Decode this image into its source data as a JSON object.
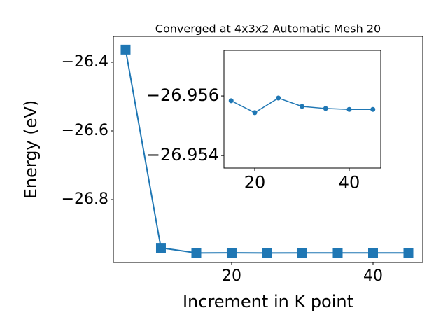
{
  "chart_data": [
    {
      "type": "line",
      "title": "Converged at 4x3x2 Automatic Mesh 20",
      "x_label": "Increment in K point",
      "y_label": "Energy (eV)",
      "x": [
        5,
        10,
        15,
        20,
        25,
        30,
        35,
        40,
        45
      ],
      "series": [
        {
          "color": "#1f77b4",
          "marker": "square",
          "values": [
            -26.363,
            -26.941,
            -26.9558,
            -26.9554,
            -26.9559,
            -26.9557,
            -26.9556,
            -26.9556,
            -26.9556
          ]
        }
      ],
      "xlim": [
        3.27,
        47.03
      ],
      "ylim": [
        -26.9837,
        -26.3245
      ],
      "xticks": [
        20,
        40
      ],
      "yticks": [
        {
          "value": -26.4,
          "label": "−26.4"
        },
        {
          "value": -26.6,
          "label": "−26.6"
        },
        {
          "value": -26.8,
          "label": "−26.8"
        }
      ]
    },
    {
      "type": "line",
      "x": [
        15,
        20,
        25,
        30,
        35,
        40,
        45
      ],
      "series": [
        {
          "color": "#1f77b4",
          "marker": "circle",
          "values": [
            -26.95584,
            -26.95544,
            -26.95593,
            -26.95565,
            -26.95558,
            -26.95555,
            -26.95555
          ]
        }
      ],
      "xlim": [
        13.48,
        46.67
      ],
      "ylim": [
        -26.95358,
        -26.95753
      ],
      "xticks": [
        20,
        40
      ],
      "yticks": [
        {
          "value": -26.956,
          "label": "−26.956"
        },
        {
          "value": -26.954,
          "label": "−26.954"
        }
      ]
    }
  ]
}
